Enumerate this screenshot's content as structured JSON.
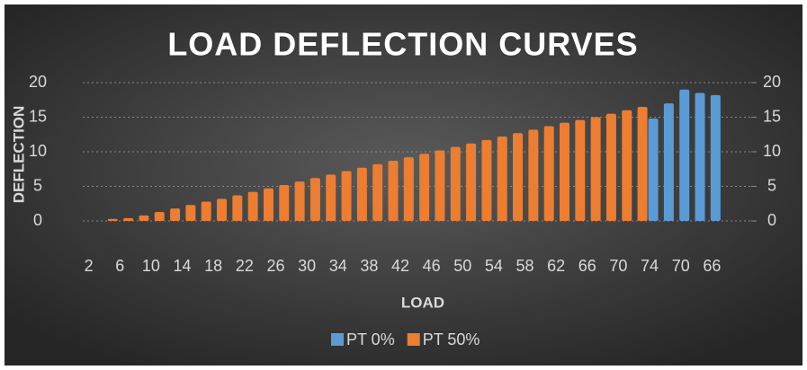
{
  "chart_data": {
    "type": "bar",
    "title": "LOAD DEFLECTION CURVES",
    "x_label": "LOAD",
    "y_label": "DEFLECTION",
    "categories": [
      2,
      null,
      6,
      null,
      10,
      null,
      14,
      null,
      18,
      null,
      22,
      null,
      26,
      null,
      30,
      null,
      34,
      null,
      38,
      null,
      42,
      null,
      46,
      null,
      50,
      null,
      54,
      null,
      58,
      null,
      62,
      null,
      66,
      null,
      70,
      null,
      74,
      null,
      70,
      null,
      66
    ],
    "series": [
      {
        "name": "PT 0%",
        "color": "#5b9bd5",
        "values": [
          null,
          null,
          null,
          null,
          null,
          null,
          null,
          null,
          null,
          null,
          null,
          null,
          null,
          null,
          null,
          null,
          null,
          null,
          null,
          null,
          null,
          null,
          null,
          null,
          null,
          null,
          null,
          null,
          null,
          null,
          null,
          null,
          null,
          null,
          null,
          null,
          14.8,
          17,
          19,
          18.5,
          18.2
        ]
      },
      {
        "name": "PT 50%",
        "color": "#ed7d31",
        "values": [
          null,
          null,
          0.3,
          0.4,
          0.8,
          1.3,
          1.8,
          2.3,
          2.8,
          3.2,
          3.7,
          4.2,
          4.7,
          5.2,
          5.7,
          6.2,
          6.7,
          7.2,
          7.7,
          8.2,
          8.7,
          9.2,
          9.7,
          10.2,
          10.7,
          11.2,
          11.7,
          12.2,
          12.7,
          13.2,
          13.7,
          14.2,
          14.6,
          15.0,
          15.5,
          16.0,
          16.5,
          null,
          null,
          null,
          null
        ]
      }
    ],
    "ylim": [
      0,
      20
    ],
    "yticks": [
      0,
      5,
      10,
      15,
      20
    ],
    "y2lim": [
      0,
      20
    ],
    "y2ticks": [
      0,
      5,
      10,
      15,
      20
    ],
    "grid": true,
    "legend": "bottom"
  }
}
